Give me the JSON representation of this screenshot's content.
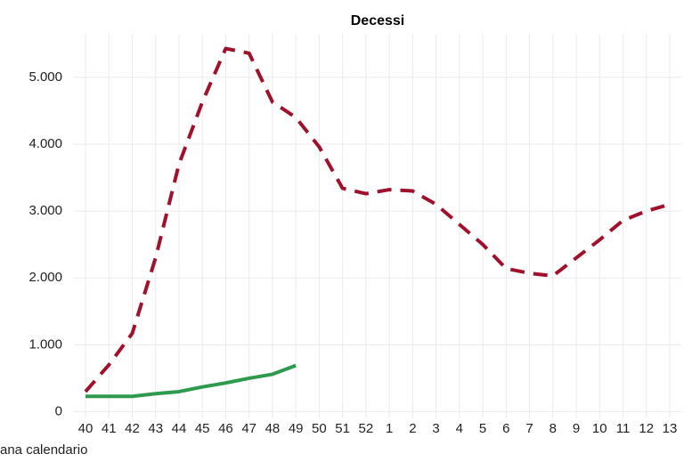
{
  "chart_data": {
    "type": "line",
    "title": "Decessi",
    "x_label": "ana calendario",
    "categories": [
      "40",
      "41",
      "42",
      "43",
      "44",
      "45",
      "46",
      "47",
      "48",
      "49",
      "50",
      "51",
      "52",
      "1",
      "2",
      "3",
      "4",
      "5",
      "6",
      "7",
      "8",
      "9",
      "10",
      "11",
      "12",
      "13"
    ],
    "series": [
      {
        "color": "#a0112c",
        "style": "dashed",
        "values": [
          300,
          700,
          1170,
          2300,
          3700,
          4630,
          5430,
          5360,
          4630,
          4400,
          3960,
          3340,
          3260,
          3320,
          3300,
          3100,
          2800,
          2500,
          2140,
          2070,
          2030,
          2300,
          2570,
          2860,
          3000,
          3100
        ]
      },
      {
        "color": "#2e9a4e",
        "style": "solid",
        "values": [
          230,
          230,
          230,
          270,
          300,
          370,
          430,
          500,
          560,
          690,
          null,
          null,
          null,
          null,
          null,
          null,
          null,
          null,
          null,
          null,
          null,
          null,
          null,
          null,
          null,
          null
        ]
      }
    ],
    "ylim": [
      -100,
      5650
    ],
    "yticks": [
      0,
      {
        "value": 1000,
        "label": "1.000"
      },
      {
        "value": 2000,
        "label": "2.000"
      },
      {
        "value": 3000,
        "label": "3.000"
      },
      {
        "value": 4000,
        "label": "4.000"
      },
      {
        "value": 5000,
        "label": "5.000"
      }
    ],
    "grid": true
  }
}
